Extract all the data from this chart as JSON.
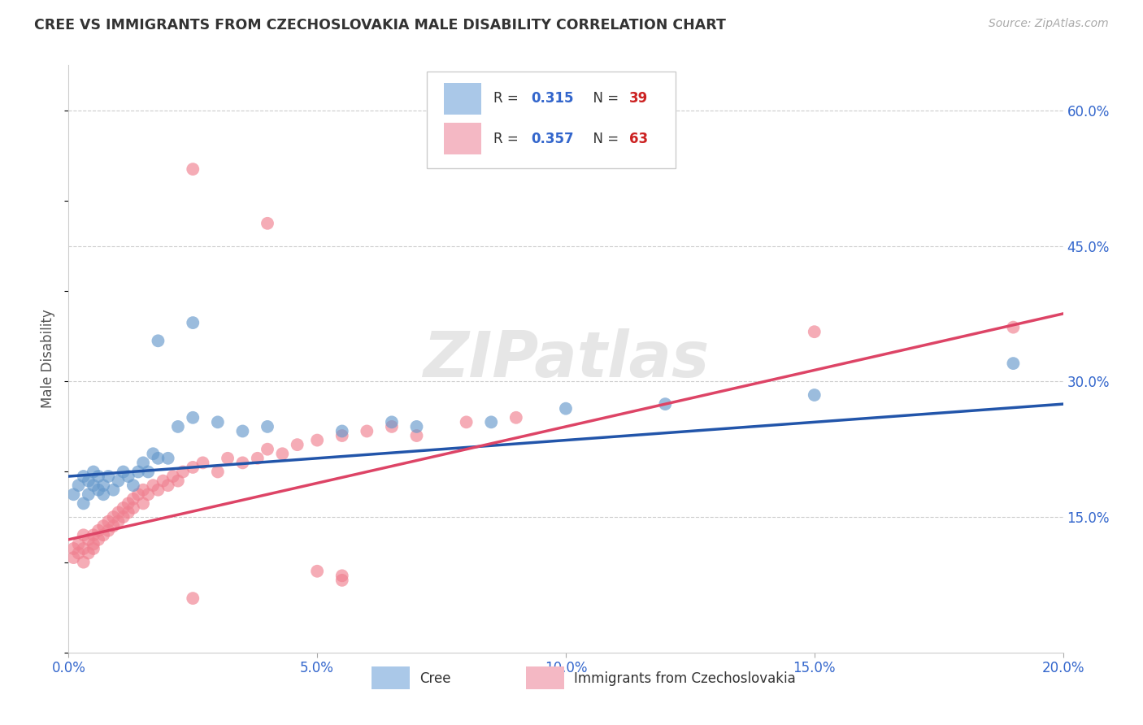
{
  "title": "CREE VS IMMIGRANTS FROM CZECHOSLOVAKIA MALE DISABILITY CORRELATION CHART",
  "source": "Source: ZipAtlas.com",
  "ylabel": "Male Disability",
  "xlim": [
    0.0,
    0.2
  ],
  "ylim": [
    0.0,
    0.65
  ],
  "xticks": [
    0.0,
    0.05,
    0.1,
    0.15,
    0.2
  ],
  "yticks_right": [
    0.15,
    0.3,
    0.45,
    0.6
  ],
  "ytick_labels_right": [
    "15.0%",
    "30.0%",
    "45.0%",
    "60.0%"
  ],
  "xtick_labels": [
    "0.0%",
    "5.0%",
    "10.0%",
    "15.0%",
    "20.0%"
  ],
  "cree_color": "#6699cc",
  "czech_color": "#f08090",
  "cree_line_color": "#2255aa",
  "czech_line_color": "#dd4466",
  "cree_legend_color": "#aac8e8",
  "czech_legend_color": "#f4b8c4",
  "watermark": "ZIPatlas",
  "legend_r1": "R = 0.315",
  "legend_n1": "N = 39",
  "legend_r2": "R = 0.357",
  "legend_n2": "N = 63",
  "r_color": "#3366cc",
  "n_color": "#cc2222",
  "cree_x": [
    0.001,
    0.002,
    0.003,
    0.003,
    0.004,
    0.004,
    0.005,
    0.005,
    0.006,
    0.006,
    0.007,
    0.007,
    0.008,
    0.009,
    0.01,
    0.011,
    0.012,
    0.013,
    0.014,
    0.015,
    0.016,
    0.017,
    0.018,
    0.02,
    0.022,
    0.025,
    0.03,
    0.035,
    0.04,
    0.055,
    0.065,
    0.07,
    0.085,
    0.1,
    0.12,
    0.15,
    0.19,
    0.018,
    0.025
  ],
  "cree_y": [
    0.175,
    0.185,
    0.165,
    0.195,
    0.175,
    0.19,
    0.185,
    0.2,
    0.18,
    0.195,
    0.175,
    0.185,
    0.195,
    0.18,
    0.19,
    0.2,
    0.195,
    0.185,
    0.2,
    0.21,
    0.2,
    0.22,
    0.215,
    0.215,
    0.25,
    0.26,
    0.255,
    0.245,
    0.25,
    0.245,
    0.255,
    0.25,
    0.255,
    0.27,
    0.275,
    0.285,
    0.32,
    0.345,
    0.365
  ],
  "czech_x": [
    0.001,
    0.001,
    0.002,
    0.002,
    0.003,
    0.003,
    0.003,
    0.004,
    0.004,
    0.005,
    0.005,
    0.005,
    0.006,
    0.006,
    0.007,
    0.007,
    0.008,
    0.008,
    0.009,
    0.009,
    0.01,
    0.01,
    0.011,
    0.011,
    0.012,
    0.012,
    0.013,
    0.013,
    0.014,
    0.015,
    0.015,
    0.016,
    0.017,
    0.018,
    0.019,
    0.02,
    0.021,
    0.022,
    0.023,
    0.025,
    0.027,
    0.03,
    0.032,
    0.035,
    0.038,
    0.04,
    0.043,
    0.046,
    0.05,
    0.055,
    0.06,
    0.065,
    0.07,
    0.08,
    0.09,
    0.05,
    0.055,
    0.15,
    0.19,
    0.025,
    0.04,
    0.025,
    0.055
  ],
  "czech_y": [
    0.105,
    0.115,
    0.11,
    0.12,
    0.1,
    0.115,
    0.13,
    0.11,
    0.125,
    0.115,
    0.13,
    0.12,
    0.135,
    0.125,
    0.14,
    0.13,
    0.145,
    0.135,
    0.15,
    0.14,
    0.155,
    0.145,
    0.16,
    0.15,
    0.165,
    0.155,
    0.17,
    0.16,
    0.175,
    0.18,
    0.165,
    0.175,
    0.185,
    0.18,
    0.19,
    0.185,
    0.195,
    0.19,
    0.2,
    0.205,
    0.21,
    0.2,
    0.215,
    0.21,
    0.215,
    0.225,
    0.22,
    0.23,
    0.235,
    0.24,
    0.245,
    0.25,
    0.24,
    0.255,
    0.26,
    0.09,
    0.085,
    0.355,
    0.36,
    0.535,
    0.475,
    0.06,
    0.08
  ],
  "cree_line_x": [
    0.0,
    0.2
  ],
  "cree_line_y": [
    0.195,
    0.275
  ],
  "czech_line_x": [
    0.0,
    0.2
  ],
  "czech_line_y": [
    0.125,
    0.375
  ]
}
